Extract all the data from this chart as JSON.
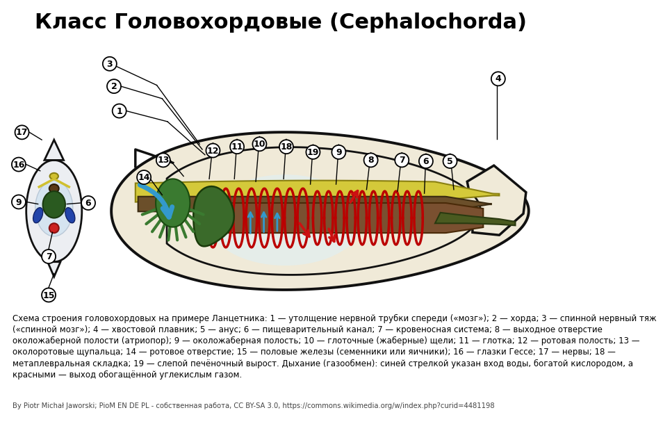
{
  "title": "Класс Головохордовые (Cephalochorda)",
  "title_fontsize": 22,
  "bg_color": "#ffffff",
  "description_lines": [
    "Схема строения головохордовых на примере Ланцетника: 1 — утолщение нервной трубки спереди («мозг»); 2 — хорда; 3 — спинной нервный тяж",
    "(«спинной мозг»); 4 — хвостовой плавник; 5 — анус; 6 — пищеварительный канал; 7 — кровеносная система; 8 — выходное отверстие",
    "околожаберной полости (атриопор); 9 — околожаберная полость; 10 — глоточные (жаберные) щели; 11 — глотка; 12 — ротовая полость; 13 —",
    "околоротовые щупальца; 14 — ротовое отверстие; 15 — половые железы (семенники или яичники); 16 — глазки Гессе; 17 — нервы; 18 —",
    "метаплевральная складка; 19 — слепой печёночный вырост. Дыхание (газообмен): синей стрелкой указан вход воды, богатой кислородом, а",
    "красными — выход обогащённой углекислым газом."
  ],
  "credit": "By Piotr Michał Jaworski; PioM EN DE PL - собственная работа, CC BY-SA 3.0, https://commons.wikimedia.org/w/index.php?curid=4481198",
  "body_fill": "#f0ead8",
  "body_stroke": "#111111",
  "nerve_fill": "#d4c93a",
  "nerve_stroke": "#8a8010",
  "notochord_fill": "#6b4f2a",
  "notochord_stroke": "#3a2a10",
  "gill_color": "#bb0000",
  "gut_fill": "#7a5030",
  "gut_stroke": "#4a2a08",
  "liver_fill": "#3a6a2a",
  "liver_stroke": "#1a3a0a",
  "blue_arrow": "#3399cc",
  "red_arrow": "#cc1111",
  "cross_body_fill": "#e8ecf0",
  "coelom_fill": "#cce0f0",
  "gonad_fill": "#2a5a20",
  "notochord_cross_fill": "#5a3a18",
  "nerve_cross_fill": "#c8b830",
  "blood_cross_fill": "#cc2222",
  "blue_sliver_fill": "#2244aa",
  "yellow_nerve_fill": "#d0c030"
}
